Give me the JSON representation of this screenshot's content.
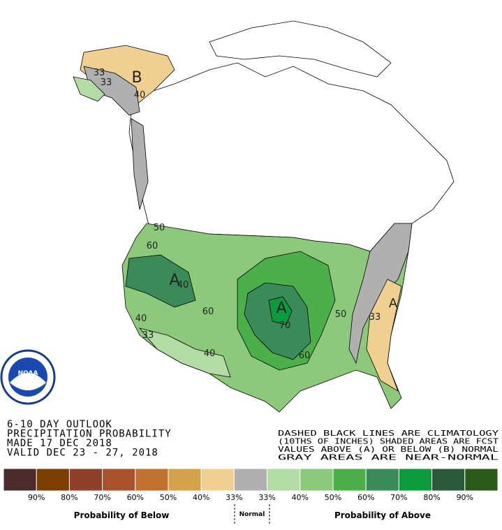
{
  "header": {
    "lines": [
      "6-10 DAY OUTLOOK",
      "PRECIPITATION PROBABILITY",
      "MADE  17 DEC 2018",
      "VALID  DEC 23 - 27, 2018"
    ]
  },
  "notes": [
    "DASHED BLACK LINES ARE CLIMATOLOGY",
    "(10THS OF INCHES) SHADED AREAS ARE FCST",
    "VALUES ABOVE (A) OR BELOW (B) NORMAL",
    "GRAY AREAS ARE NEAR-NORMAL"
  ],
  "map": {
    "labels": [
      "33",
      "33",
      "B",
      "40",
      "50",
      "60",
      "A",
      "40",
      "60",
      "40",
      "33",
      "40",
      "A",
      "70",
      "50",
      "60",
      "33",
      "A"
    ]
  },
  "legend": {
    "colors": [
      "#4b2b2b",
      "#7b3f00",
      "#8f3f2a",
      "#a9522e",
      "#c0702f",
      "#d4a24a",
      "#f0d090",
      "#b0b0b0",
      "#b3dba5",
      "#8cc97a",
      "#4cb04a",
      "#3a8a5a",
      "#0c9a3e",
      "#2a5a3a",
      "#2a5a1a"
    ],
    "labels": [
      "90%",
      "80%",
      "70%",
      "60%",
      "50%",
      "40%",
      "33%",
      "33%",
      "40%",
      "50%",
      "60%",
      "70%",
      "80%",
      "90%"
    ],
    "below": "Probability of Below",
    "normal": "Normal",
    "above": "Probability of Above"
  }
}
